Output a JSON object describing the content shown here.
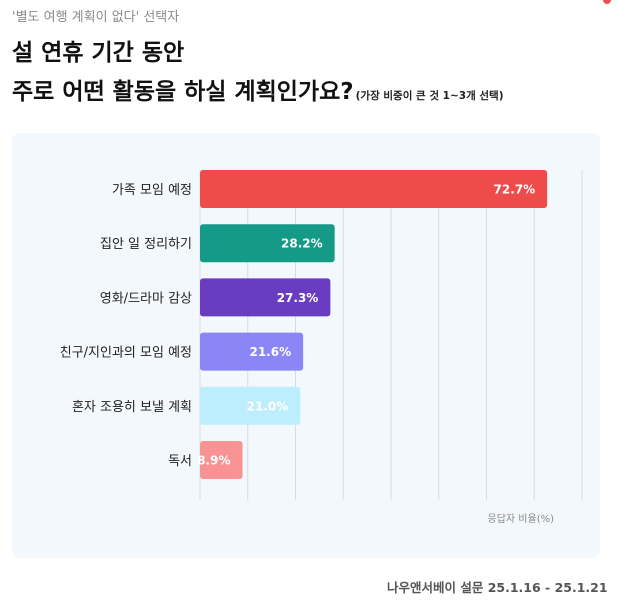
{
  "header": {
    "subtitle": "'별도 여행 계획이 없다' 선택자",
    "title_line1": "설 연휴 기간 동안",
    "title_line2": "주로 어떤 활동을 하실 계획인가요?",
    "title_note": "(가장 비중이 큰 것 1~3개 선택)"
  },
  "footer": {
    "source": "나우앤서베이 설문 25.1.16 - 25.1.21"
  },
  "colors": {
    "accent_dot": "#f0504a",
    "grid": "#d6dce2",
    "panel_bg": "#f3f8fc"
  },
  "chart_data": {
    "type": "bar",
    "orientation": "horizontal",
    "categories": [
      "가족 모임 예정",
      "집안 일 정리하기",
      "영화/드라마 감상",
      "친구/지인과의 모임 예정",
      "혼자 조용히 보낼 계획",
      "독서"
    ],
    "values": [
      72.7,
      28.2,
      27.3,
      21.6,
      21.0,
      8.9
    ],
    "value_labels": [
      "72.7%",
      "28.2%",
      "27.3%",
      "21.6%",
      "21.0%",
      "8.9%"
    ],
    "colors": [
      "#ef4b4b",
      "#149a86",
      "#6a3cc0",
      "#8a86f6",
      "#bdeefd",
      "#f99393"
    ],
    "xlabel": "응답자 비율(%)",
    "xlim": [
      0,
      80
    ],
    "grid": true,
    "legend": "none"
  }
}
